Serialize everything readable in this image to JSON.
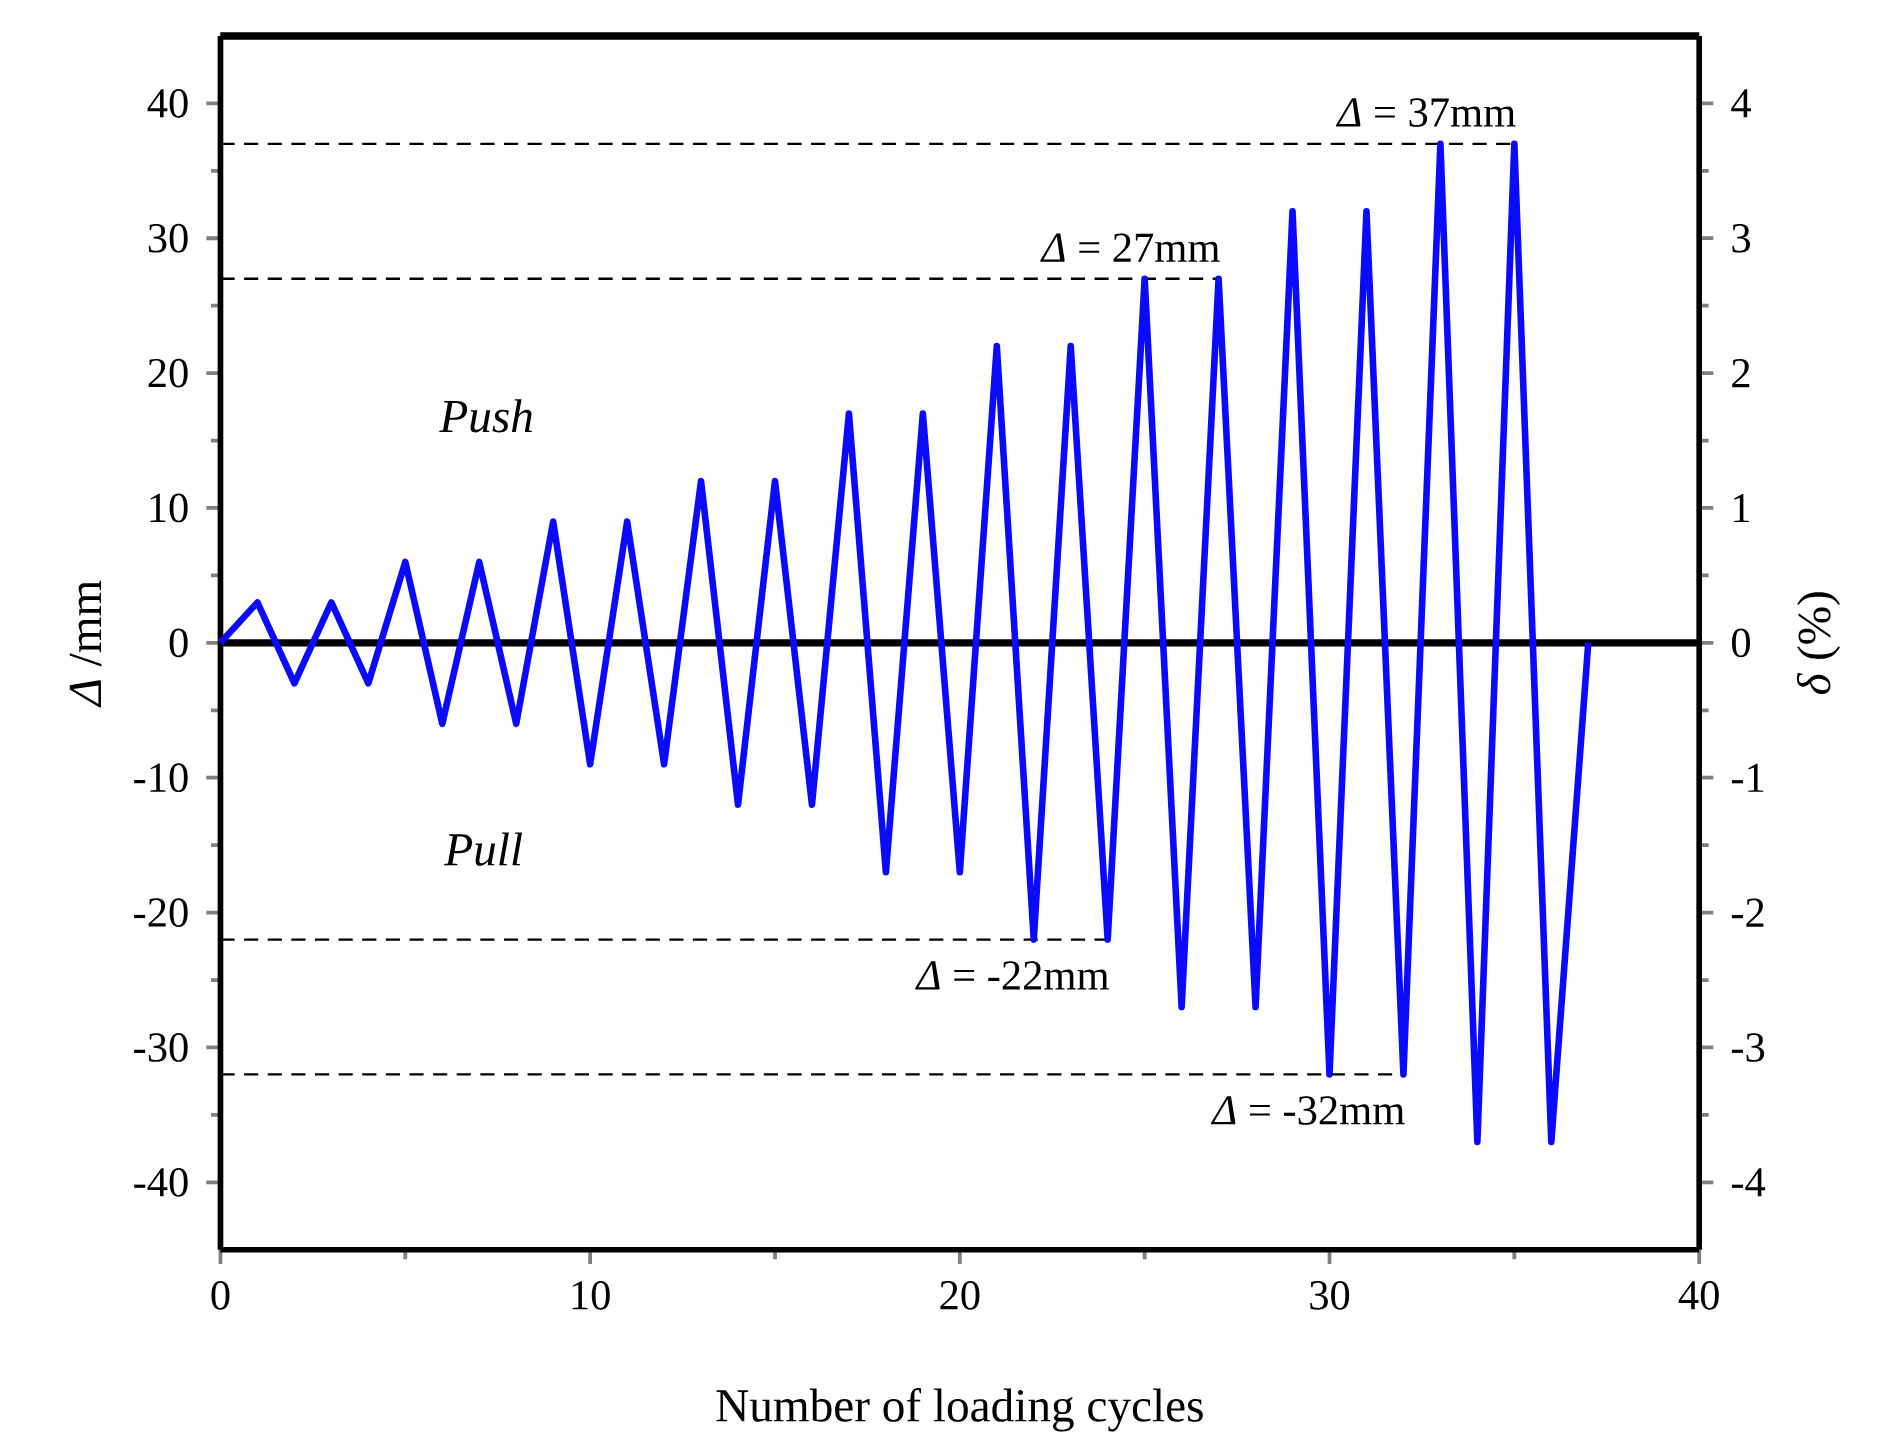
{
  "chart_data": {
    "type": "line",
    "xlabel": "Number of loading cycles",
    "ylabel": "*Δ* /mm",
    "y2label": "*δ* (%)",
    "x": [
      0,
      1,
      2,
      3,
      4,
      5,
      6,
      7,
      8,
      9,
      10,
      11,
      12,
      13,
      14,
      15,
      16,
      17,
      18,
      19,
      20,
      21,
      22,
      23,
      24,
      25,
      26,
      27,
      28,
      29,
      30,
      31,
      32,
      33,
      34,
      35,
      36,
      37
    ],
    "series": [
      {
        "color": "#0a0aff",
        "values": [
          0,
          3,
          -3,
          3,
          -3,
          6,
          -6,
          6,
          -6,
          9,
          -9,
          9,
          -9,
          12,
          -12,
          12,
          -12,
          17,
          -17,
          17,
          -17,
          22,
          -22,
          22,
          -22,
          27,
          -27,
          27,
          -27,
          32,
          -32,
          32,
          -32,
          37,
          -37,
          37,
          -37,
          0
        ]
      }
    ],
    "xlim": [
      0,
      40
    ],
    "xticks": [
      0,
      10,
      20,
      30,
      40
    ],
    "ylim": [
      -45,
      45
    ],
    "yticks": [
      -40,
      -30,
      -20,
      -10,
      0,
      10,
      20,
      30,
      40
    ],
    "y2lim": [
      -4.5,
      4.5
    ],
    "y2ticks": [
      -4,
      -3,
      -2,
      -1,
      0,
      1,
      2,
      3,
      4
    ],
    "ref_lines": [
      {
        "axis": "y",
        "value": 0,
        "color": "#000000",
        "line_style": "solid"
      },
      {
        "axis": "y",
        "value": 37,
        "label": "*Δ* = 37mm",
        "color": "#000000",
        "line_style": "dashed"
      },
      {
        "axis": "y",
        "value": 27,
        "label": "*Δ* = 27mm",
        "color": "#000000",
        "line_style": "dashed"
      },
      {
        "axis": "y",
        "value": -22,
        "label": "*Δ* = -22mm",
        "color": "#000000",
        "line_style": "dashed"
      },
      {
        "axis": "y",
        "value": -32,
        "label": "*Δ* = -32mm",
        "color": "#000000",
        "line_style": "dashed"
      }
    ],
    "annotations": [
      "Push",
      "Pull"
    ],
    "grid": false,
    "marker": "none",
    "line_style": "solid"
  }
}
